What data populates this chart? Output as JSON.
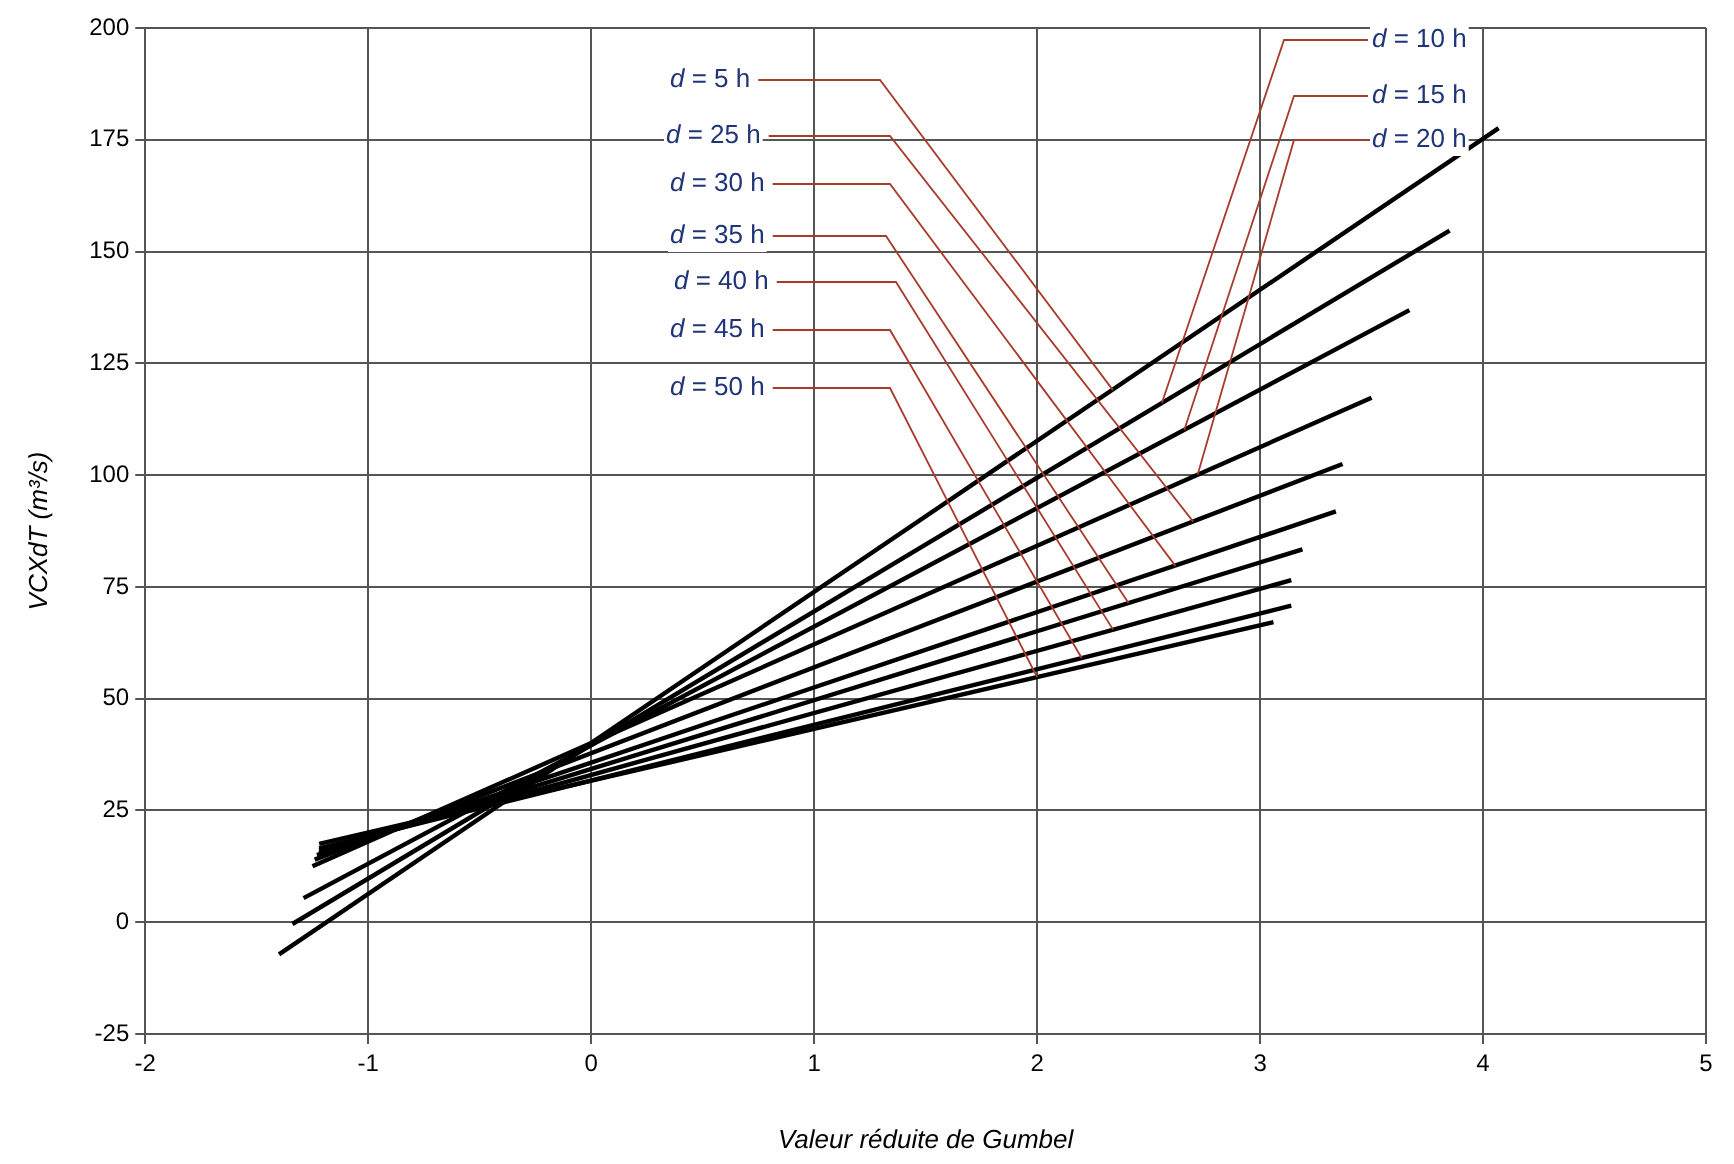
{
  "chart_data": {
    "type": "line",
    "xlabel": "Valeur réduite de Gumbel",
    "ylabel": "VCXdT (m³/s)",
    "xlim": [
      -2,
      5
    ],
    "xticks": [
      -2,
      -1,
      0,
      1,
      2,
      3,
      4,
      5
    ],
    "ylim": [
      -25,
      200
    ],
    "yticks": [
      -25,
      0,
      25,
      50,
      75,
      100,
      125,
      150,
      175,
      200
    ],
    "grid": true,
    "legend": false,
    "marker": "none",
    "line_style": "solid",
    "series": [
      {
        "color": "#000000",
        "x": [
          -1.4,
          4.07
        ],
        "values": [
          -7.2,
          177.6
        ]
      },
      {
        "color": "#000000",
        "x": [
          -1.34,
          3.85
        ],
        "values": [
          -0.4,
          154.7
        ]
      },
      {
        "color": "#000000",
        "x": [
          -1.29,
          3.67
        ],
        "values": [
          5.4,
          136.9
        ]
      },
      {
        "color": "#000000",
        "x": [
          -1.25,
          3.5
        ],
        "values": [
          12.5,
          117.3
        ]
      },
      {
        "color": "#000000",
        "x": [
          -1.24,
          3.37
        ],
        "values": [
          14,
          102.5
        ]
      },
      {
        "color": "#000000",
        "x": [
          -1.23,
          3.34
        ],
        "values": [
          15,
          91.9
        ]
      },
      {
        "color": "#000000",
        "x": [
          -1.22,
          3.19
        ],
        "values": [
          15.5,
          83.4
        ]
      },
      {
        "color": "#000000",
        "x": [
          -1.22,
          3.14
        ],
        "values": [
          16,
          76.5
        ]
      },
      {
        "color": "#000000",
        "x": [
          -1.22,
          3.14
        ],
        "values": [
          16.5,
          70.8
        ]
      },
      {
        "color": "#000000",
        "x": [
          -1.22,
          3.06
        ],
        "values": [
          17.5,
          67.1
        ]
      }
    ],
    "annotations": [
      {
        "text": "d = 5 h",
        "x": 2.34,
        "y": 119
      },
      {
        "text": "d = 10 h",
        "x": 2.56,
        "y": 116.2
      },
      {
        "text": "d = 15 h",
        "x": 2.66,
        "y": 110.1
      },
      {
        "text": "d = 20 h",
        "x": 2.72,
        "y": 100.1
      },
      {
        "text": "d = 25 h",
        "x": 2.7,
        "y": 89.6
      },
      {
        "text": "d = 30 h",
        "x": 2.62,
        "y": 79.7
      },
      {
        "text": "d = 35 h",
        "x": 2.41,
        "y": 71.4
      },
      {
        "text": "d = 40 h",
        "x": 2.34,
        "y": 65.5
      },
      {
        "text": "d = 45 h",
        "x": 2.2,
        "y": 59.1
      },
      {
        "text": "d = 50 h",
        "x": 2.0,
        "y": 54.8
      }
    ]
  }
}
